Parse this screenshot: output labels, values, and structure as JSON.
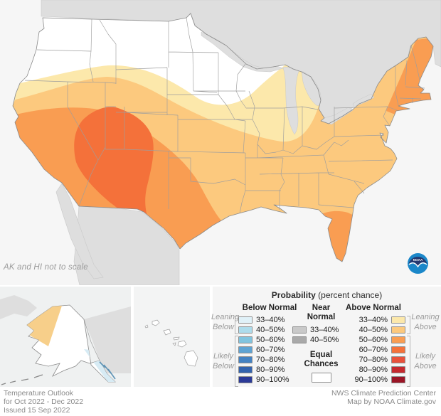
{
  "map": {
    "note": "AK and HI not to scale",
    "colors": {
      "ocean": "#f6f6f6",
      "foreign_land": "#dedede",
      "lakes": "#dedede",
      "equal_chances_fill": "#ffffff",
      "state_border": "#9e9e9e"
    }
  },
  "logo": {
    "text": "NOAA"
  },
  "legend": {
    "title_bold": "Probability",
    "title_rest": " (percent chance)",
    "below": {
      "header": "Below Normal",
      "leaning_1": "Leaning",
      "leaning_2": "Below",
      "likely_1": "Likely",
      "likely_2": "Below",
      "rows": [
        {
          "label": "33–40%",
          "color": "#e0f1f8"
        },
        {
          "label": "40–50%",
          "color": "#aedcec"
        },
        {
          "label": "50–60%",
          "color": "#81c4df"
        },
        {
          "label": "60–70%",
          "color": "#5ea3d3"
        },
        {
          "label": "70–80%",
          "color": "#4482c2"
        },
        {
          "label": "80–90%",
          "color": "#3363ad"
        },
        {
          "label": "90–100%",
          "color": "#2b3a97"
        }
      ]
    },
    "near": {
      "header_1": "Near",
      "header_2": "Normal",
      "rows": [
        {
          "label": "33–40%",
          "color": "#c9c9c9"
        },
        {
          "label": "40–50%",
          "color": "#a9a9a9"
        }
      ]
    },
    "equal": {
      "label_1": "Equal",
      "label_2": "Chances",
      "color": "#ffffff"
    },
    "above": {
      "header": "Above Normal",
      "leaning_1": "Leaning",
      "leaning_2": "Above",
      "likely_1": "Likely",
      "likely_2": "Above",
      "rows": [
        {
          "label": "33–40%",
          "color": "#fce8ab"
        },
        {
          "label": "40–50%",
          "color": "#fcc97e"
        },
        {
          "label": "50–60%",
          "color": "#f99d52"
        },
        {
          "label": "60–70%",
          "color": "#f4713a"
        },
        {
          "label": "70–80%",
          "color": "#e8513b"
        },
        {
          "label": "80–90%",
          "color": "#c5292e"
        },
        {
          "label": "90–100%",
          "color": "#9b1526"
        }
      ]
    }
  },
  "footer": {
    "left_1": "Temperature Outlook",
    "left_2": "for Oct 2022 - Dec 2022",
    "left_3": "Issued 15 Sep 2022",
    "right_1": "NWS Climate Prediction Center",
    "right_2": "Map by NOAA Climate.gov"
  }
}
